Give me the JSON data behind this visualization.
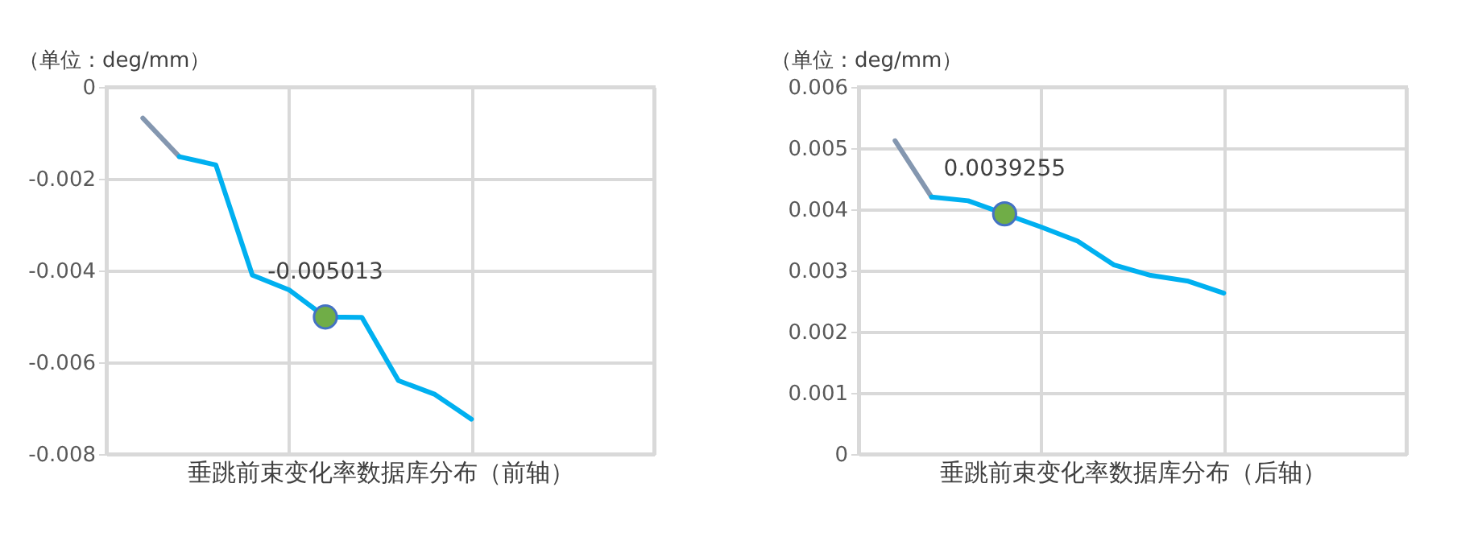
{
  "chart_data": [
    {
      "type": "line",
      "ylabel": "（单位：deg/mm）",
      "xlabel": "垂跳前束变化率数据库分布（前轴）",
      "categories": [
        null,
        null,
        null,
        null,
        null,
        null,
        null,
        null,
        null,
        null
      ],
      "ylim": [
        -0.008,
        0
      ],
      "yticks": [
        -0.008,
        -0.006,
        -0.004,
        -0.002,
        0
      ],
      "grid": true,
      "line_style": "solid",
      "series": [
        {
          "color": "#8497b0",
          "values": [
            -0.00068,
            -0.00152,
            null,
            null,
            null,
            null,
            null,
            null,
            null,
            null
          ]
        },
        {
          "color": "#00b0f0",
          "values": [
            null,
            -0.00152,
            -0.0017,
            -0.0041,
            -0.00442,
            -0.005013,
            -0.00502,
            -0.0064,
            -0.0067,
            -0.00724
          ]
        },
        {
          "type": "scatter",
          "marker": "circle",
          "color": "#70ad47",
          "values": [
            null,
            null,
            null,
            null,
            null,
            -0.005013,
            null,
            null,
            null,
            null
          ],
          "value_labels": [
            null,
            null,
            null,
            null,
            null,
            "-0.005013",
            null,
            null,
            null,
            null
          ]
        }
      ]
    },
    {
      "type": "line",
      "ylabel": "（单位：deg/mm）",
      "xlabel": "垂跳前束变化率数据库分布（后轴）",
      "categories": [
        null,
        null,
        null,
        null,
        null,
        null,
        null,
        null,
        null,
        null
      ],
      "ylim": [
        0,
        0.006
      ],
      "yticks": [
        0,
        0.001,
        0.002,
        0.003,
        0.004,
        0.005,
        0.006
      ],
      "grid": true,
      "line_style": "solid",
      "series": [
        {
          "color": "#8497b0",
          "values": [
            0.00512,
            0.0042,
            null,
            null,
            null,
            null,
            null,
            null,
            null,
            null
          ]
        },
        {
          "color": "#00b0f0",
          "values": [
            null,
            0.0042,
            0.00414,
            0.0039255,
            0.00371,
            0.00348,
            0.00309,
            0.00292,
            0.00283,
            0.00263
          ]
        },
        {
          "type": "scatter",
          "marker": "circle",
          "color": "#70ad47",
          "values": [
            null,
            null,
            null,
            0.0039255,
            null,
            null,
            null,
            null,
            null,
            null
          ],
          "value_labels": [
            null,
            null,
            null,
            "0.0039255",
            null,
            null,
            null,
            null,
            null,
            null
          ]
        }
      ]
    }
  ]
}
